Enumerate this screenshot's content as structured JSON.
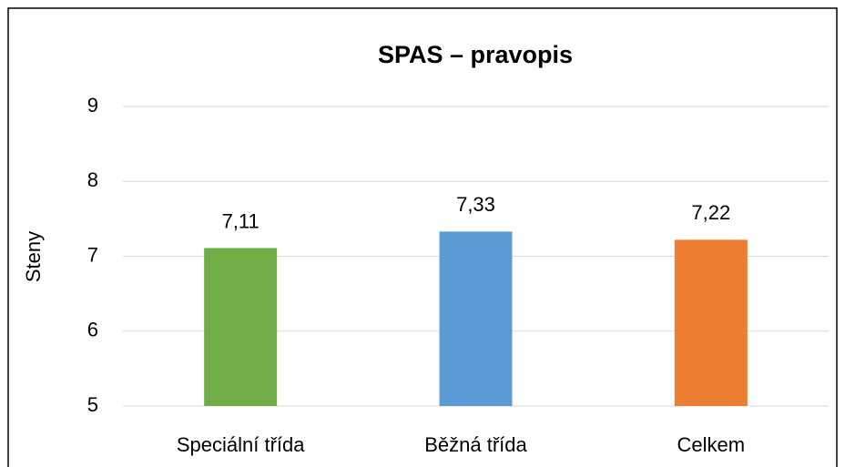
{
  "chart_data": {
    "type": "bar",
    "title": "SPAS – pravopis",
    "y_label": "Steny",
    "categories": [
      "Speciální třída",
      "Běžná třída",
      "Celkem"
    ],
    "values": [
      7.11,
      7.33,
      7.22
    ],
    "value_labels": [
      "7,11",
      "7,33",
      "7,22"
    ],
    "colors": [
      "#70ad47",
      "#5b9bd5",
      "#ed7d31"
    ],
    "ylim": [
      5,
      9
    ],
    "yticks": [
      5,
      6,
      7,
      8,
      9
    ],
    "grid": true
  }
}
